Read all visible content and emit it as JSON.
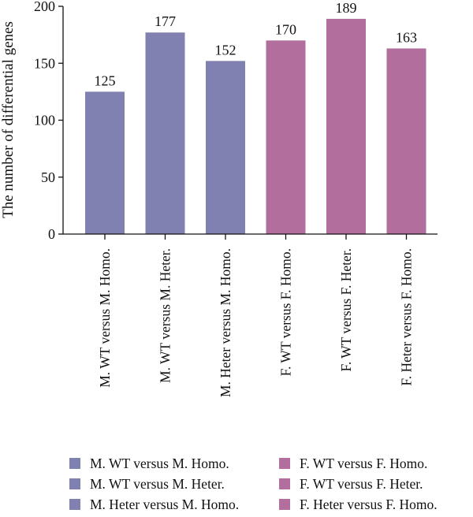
{
  "chart_data": {
    "type": "bar",
    "categories": [
      "M. WT versus M. Homo.",
      "M. WT versus M. Heter.",
      "M. Heter versus M. Homo.",
      "F. WT versus F. Homo.",
      "F. WT versus F. Heter.",
      "F. Heter versus F. Homo."
    ],
    "values": [
      125,
      177,
      152,
      170,
      189,
      163
    ],
    "data_labels": [
      "125",
      "177",
      "152",
      "170",
      "189",
      "163"
    ],
    "bar_colors": [
      "#8080b1",
      "#8080b1",
      "#8080b1",
      "#b26f9e",
      "#b26f9e",
      "#b26f9e"
    ],
    "ylabel": "The number of differential genes",
    "xlabel": "",
    "ylim": [
      0,
      200
    ],
    "yticks": [
      0,
      50,
      100,
      150,
      200
    ],
    "grid": false,
    "legend_position": "bottom"
  },
  "legend": {
    "items": [
      {
        "label": "M. WT versus M. Homo.",
        "color": "#8080b1"
      },
      {
        "label": "M. WT versus M. Heter.",
        "color": "#8080b1"
      },
      {
        "label": "M. Heter versus M. Homo.",
        "color": "#8080b1"
      },
      {
        "label": "F. WT versus F. Homo.",
        "color": "#b26f9e"
      },
      {
        "label": "F. WT versus F. Heter.",
        "color": "#b26f9e"
      },
      {
        "label": "F. Heter versus F. Homo.",
        "color": "#b26f9e"
      }
    ]
  }
}
